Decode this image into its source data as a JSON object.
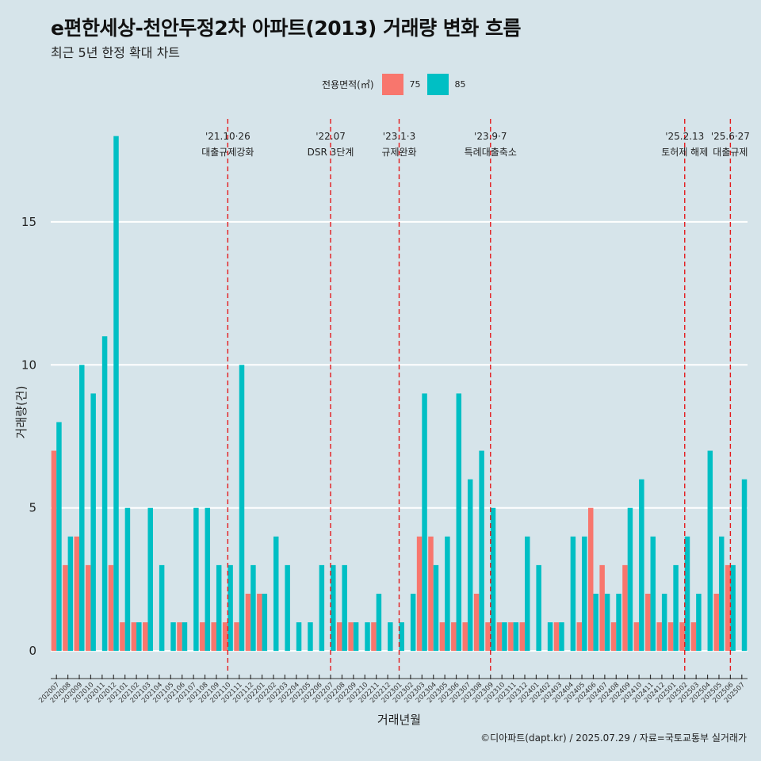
{
  "title": "e편한세상-천안두정2차 아파트(2013) 거래량 변화 흐름",
  "subtitle": "최근 5년 한정 확대 차트",
  "caption": "©디아파트(dapt.kr) / 2025.07.29 / 자료=국토교통부 실거래가",
  "legend": {
    "title": "전용면적(㎡)",
    "items": [
      {
        "label": "75",
        "color": "#f8766d"
      },
      {
        "label": "85",
        "color": "#00bfc4"
      }
    ]
  },
  "chart_data": {
    "type": "bar",
    "xlabel": "거래년월",
    "ylabel": "거래량(건)",
    "ylim": [
      -0.8,
      18.6
    ],
    "yticks": [
      0,
      5,
      10,
      15
    ],
    "categories": [
      "202007",
      "202008",
      "202009",
      "202010",
      "202011",
      "202012",
      "202101",
      "202102",
      "202103",
      "202104",
      "202105",
      "202106",
      "202107",
      "202108",
      "202109",
      "202110",
      "202111",
      "202112",
      "202201",
      "202202",
      "202203",
      "202204",
      "202205",
      "202206",
      "202207",
      "202208",
      "202209",
      "202210",
      "202211",
      "202212",
      "202301",
      "202302",
      "202303",
      "202304",
      "202305",
      "202306",
      "202307",
      "202308",
      "202309",
      "202310",
      "202311",
      "202312",
      "202401",
      "202402",
      "202403",
      "202404",
      "202405",
      "202406",
      "202407",
      "202408",
      "202409",
      "202410",
      "202411",
      "202412",
      "202501",
      "202502",
      "202503",
      "202504",
      "202505",
      "202506",
      "202507"
    ],
    "series": [
      {
        "name": "75",
        "color": "#f8766d",
        "values": [
          7,
          3,
          4,
          3,
          0,
          3,
          1,
          1,
          1,
          0,
          0,
          1,
          0,
          1,
          1,
          1,
          1,
          2,
          2,
          0,
          0,
          0,
          0,
          0,
          0,
          1,
          1,
          0,
          1,
          0,
          0,
          0,
          4,
          4,
          1,
          1,
          1,
          2,
          1,
          1,
          1,
          1,
          0,
          0,
          1,
          0,
          1,
          5,
          3,
          1,
          3,
          1,
          2,
          1,
          1,
          1,
          1,
          0,
          2,
          3,
          0
        ]
      },
      {
        "name": "85",
        "color": "#00bfc4",
        "values": [
          8,
          4,
          10,
          9,
          11,
          18,
          5,
          1,
          5,
          3,
          1,
          1,
          5,
          5,
          3,
          3,
          10,
          3,
          2,
          4,
          3,
          1,
          1,
          3,
          3,
          3,
          1,
          1,
          2,
          1,
          1,
          2,
          9,
          3,
          4,
          9,
          6,
          7,
          5,
          1,
          1,
          4,
          3,
          1,
          1,
          4,
          4,
          2,
          2,
          2,
          5,
          6,
          4,
          2,
          3,
          4,
          2,
          7,
          4,
          3,
          6
        ]
      }
    ],
    "events": [
      {
        "date": "'21.10·26",
        "label": "대출규제강화",
        "index": 15
      },
      {
        "date": "'22.07",
        "label": "DSR 3단계",
        "index": 24
      },
      {
        "date": "'23.1·3",
        "label": "규제완화",
        "index": 30
      },
      {
        "date": "'23.9·7",
        "label": "특례대출축소",
        "index": 38
      },
      {
        "date": "'25.2.13",
        "label": "토허제 해제",
        "index": 55
      },
      {
        "date": "'25.6·27",
        "label": "대출규제",
        "index": 59
      }
    ]
  }
}
